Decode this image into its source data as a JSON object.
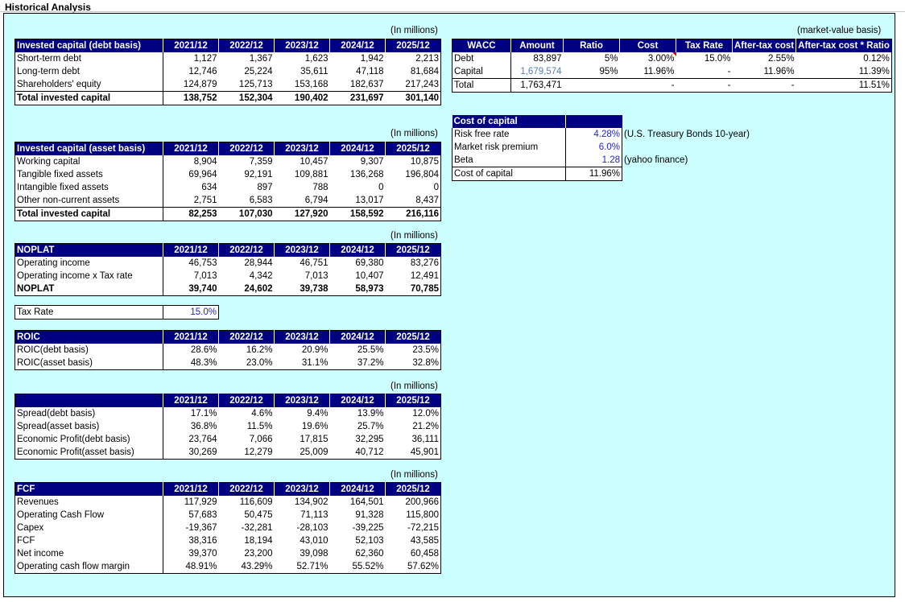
{
  "title": "Historical Analysis",
  "unit_note": "(In millions)",
  "market_note": "(market-value basis)",
  "years": [
    "2021/12",
    "2022/12",
    "2023/12",
    "2024/12",
    "2025/12"
  ],
  "debt_basis": {
    "header": "Invested capital (debt basis)",
    "rows": [
      {
        "label": "Short-term debt",
        "values": [
          "1,127",
          "1,367",
          "1,623",
          "1,942",
          "2,213"
        ]
      },
      {
        "label": "Long-term debt",
        "values": [
          "12,746",
          "25,224",
          "35,611",
          "47,118",
          "81,684"
        ]
      },
      {
        "label": "Shareholders' equity",
        "values": [
          "124,879",
          "125,713",
          "153,168",
          "182,637",
          "217,243"
        ]
      }
    ],
    "total": {
      "label": "Total invested capital",
      "values": [
        "138,752",
        "152,304",
        "190,402",
        "231,697",
        "301,140"
      ]
    }
  },
  "asset_basis": {
    "header": "Invested capital (asset basis)",
    "rows": [
      {
        "label": "Working capital",
        "values": [
          "8,904",
          "7,359",
          "10,457",
          "9,307",
          "10,875"
        ]
      },
      {
        "label": "Tangible fixed assets",
        "values": [
          "69,964",
          "92,191",
          "109,881",
          "136,268",
          "196,804"
        ]
      },
      {
        "label": "Intangible fixed assets",
        "values": [
          "634",
          "897",
          "788",
          "0",
          "0"
        ]
      },
      {
        "label": "Other non-current assets",
        "values": [
          "2,751",
          "6,583",
          "6,794",
          "13,017",
          "8,437"
        ]
      }
    ],
    "total": {
      "label": "Total invested capital",
      "values": [
        "82,253",
        "107,030",
        "127,920",
        "158,592",
        "216,116"
      ]
    }
  },
  "noplat": {
    "header": "NOPLAT",
    "rows": [
      {
        "label": "Operating income",
        "values": [
          "46,753",
          "28,944",
          "46,751",
          "69,380",
          "83,276"
        ]
      },
      {
        "label": "Operating income x Tax rate",
        "values": [
          "7,013",
          "4,342",
          "7,013",
          "10,407",
          "12,491"
        ]
      }
    ],
    "total": {
      "label": "NOPLAT",
      "values": [
        "39,740",
        "24,602",
        "39,738",
        "58,973",
        "70,785"
      ]
    }
  },
  "tax_rate": {
    "label": "Tax Rate",
    "value": "15.0%"
  },
  "roic": {
    "header": "ROIC",
    "rows": [
      {
        "label": "ROIC(debt basis)",
        "values": [
          "28.6%",
          "16.2%",
          "20.9%",
          "25.5%",
          "23.5%"
        ]
      },
      {
        "label": "ROIC(asset basis)",
        "values": [
          "48.3%",
          "23.0%",
          "31.1%",
          "37.2%",
          "32.8%"
        ]
      }
    ]
  },
  "spread": {
    "header": "",
    "rows": [
      {
        "label": "Spread(debt basis)",
        "values": [
          "17.1%",
          "4.6%",
          "9.4%",
          "13.9%",
          "12.0%"
        ]
      },
      {
        "label": "Spread(asset basis)",
        "values": [
          "36.8%",
          "11.5%",
          "19.6%",
          "25.7%",
          "21.2%"
        ]
      },
      {
        "label": "Economic Profit(debt basis)",
        "values": [
          "23,764",
          "7,066",
          "17,815",
          "32,295",
          "36,111"
        ]
      },
      {
        "label": "Economic Profit(asset basis)",
        "values": [
          "30,269",
          "12,279",
          "25,009",
          "40,712",
          "45,901"
        ]
      }
    ]
  },
  "fcf": {
    "header": "FCF",
    "rows": [
      {
        "label": "Revenues",
        "values": [
          "117,929",
          "116,609",
          "134,902",
          "164,501",
          "200,966"
        ]
      },
      {
        "label": "Operating Cash Flow",
        "values": [
          "57,683",
          "50,475",
          "71,113",
          "91,328",
          "115,800"
        ]
      },
      {
        "label": "Capex",
        "values": [
          "-19,367",
          "-32,281",
          "-28,103",
          "-39,225",
          "-72,215"
        ]
      },
      {
        "label": "FCF",
        "values": [
          "38,316",
          "18,194",
          "43,010",
          "52,103",
          "43,585"
        ]
      },
      {
        "label": "Net income",
        "values": [
          "39,370",
          "23,200",
          "39,098",
          "62,360",
          "60,458"
        ]
      },
      {
        "label": "Operating cash flow margin",
        "values": [
          "48.91%",
          "43.29%",
          "52.71%",
          "55.52%",
          "57.62%"
        ]
      }
    ]
  },
  "wacc": {
    "headers": [
      "WACC",
      "Amount",
      "Ratio",
      "Cost",
      "Tax Rate",
      "After-tax cost",
      "After-tax cost * Ratio"
    ],
    "rows": [
      {
        "label": "Debt",
        "amount": "83,897",
        "ratio": "5%",
        "cost": "3.00%",
        "tax": "15.0%",
        "after": "2.55%",
        "weighted": "0.12%"
      },
      {
        "label": "Capital",
        "amount": "1,679,574",
        "ratio": "95%",
        "cost": "11.96%",
        "tax": "-",
        "after": "11.96%",
        "weighted": "11.39%"
      },
      {
        "label": "Total",
        "amount": "1,763,471",
        "ratio": "",
        "cost": "-",
        "tax": "-",
        "after": "-",
        "weighted": "11.51%"
      }
    ]
  },
  "cost_of_capital": {
    "header": "Cost of capital",
    "rows": [
      {
        "label": "Risk free rate",
        "value": "4.28%",
        "note": "(U.S. Treasury Bonds 10-year)"
      },
      {
        "label": "Market risk premium",
        "value": "6.0%",
        "note": ""
      },
      {
        "label": "Beta",
        "value": "1.28",
        "note": "(yahoo finance)"
      },
      {
        "label": "Cost of capital",
        "value": "11.96%",
        "note": ""
      }
    ]
  },
  "colors": {
    "header_bg": "#000080",
    "panel_bg": "#ccffff",
    "input_blue": "#2222cc"
  }
}
